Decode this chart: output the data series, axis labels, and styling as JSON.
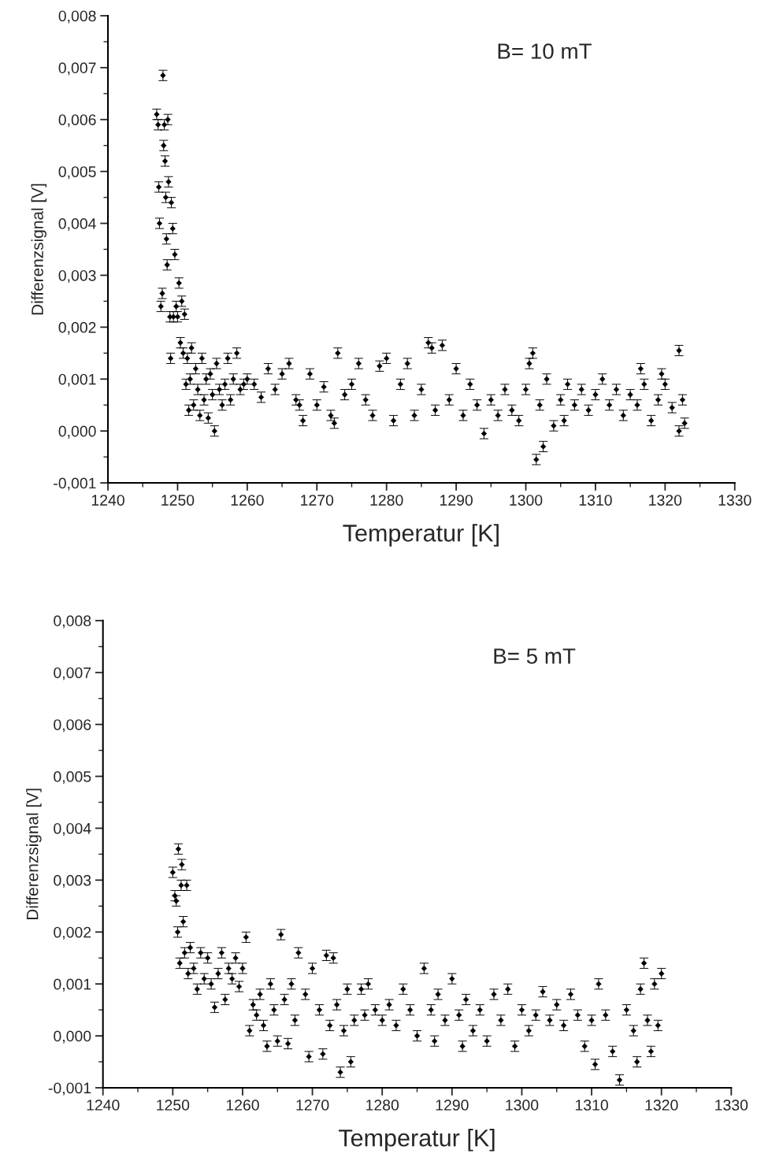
{
  "chart_data": [
    {
      "type": "scatter",
      "xlabel": "Temperatur [K]",
      "ylabel": "Differenzsignal [V]",
      "annotations": [
        "B= 10 mT"
      ],
      "marker": "diamond",
      "grid": false,
      "legend": false,
      "xlim": [
        1240,
        1330
      ],
      "xticks": [
        1240,
        1250,
        1260,
        1270,
        1280,
        1290,
        1300,
        1310,
        1320,
        1330
      ],
      "ylim": [
        -0.001,
        0.008
      ],
      "yticks": [
        {
          "value": -0.001,
          "label": "-0,001"
        },
        {
          "value": 0.0,
          "label": "0,000"
        },
        {
          "value": 0.001,
          "label": "0,001"
        },
        {
          "value": 0.002,
          "label": "0,002"
        },
        {
          "value": 0.003,
          "label": "0,003"
        },
        {
          "value": 0.004,
          "label": "0,004"
        },
        {
          "value": 0.005,
          "label": "0,005"
        },
        {
          "value": 0.006,
          "label": "0,006"
        },
        {
          "value": 0.007,
          "label": "0,007"
        },
        {
          "value": 0.008,
          "label": "0,008"
        }
      ],
      "series": [
        {
          "color": "#000000",
          "x": [
            1247.0,
            1247.2,
            1247.3,
            1247.4,
            1247.6,
            1247.8,
            1247.9,
            1248.0,
            1248.1,
            1248.2,
            1248.3,
            1248.4,
            1248.5,
            1248.6,
            1248.7,
            1248.9,
            1249.0,
            1249.1,
            1249.3,
            1249.4,
            1249.6,
            1249.8,
            1250.0,
            1250.2,
            1250.4,
            1250.6,
            1250.8,
            1251.0,
            1251.2,
            1251.4,
            1251.6,
            1251.8,
            1252.0,
            1252.3,
            1252.6,
            1252.9,
            1253.2,
            1253.5,
            1253.8,
            1254.1,
            1254.4,
            1254.7,
            1255.0,
            1255.3,
            1255.6,
            1256.0,
            1256.4,
            1256.8,
            1257.2,
            1257.6,
            1258.0,
            1258.5,
            1259.0,
            1259.5,
            1260.0,
            1261,
            1262,
            1263,
            1264,
            1265,
            1266,
            1267,
            1267.5,
            1268,
            1269,
            1270,
            1271,
            1272,
            1272.5,
            1273,
            1274,
            1275,
            1276,
            1277,
            1278,
            1279,
            1280,
            1281,
            1282,
            1283,
            1284,
            1285,
            1286,
            1286.5,
            1287,
            1288,
            1289,
            1290,
            1291,
            1292,
            1293,
            1294,
            1295,
            1296,
            1297,
            1298,
            1299,
            1300,
            1300.5,
            1301,
            1301.5,
            1302,
            1302.5,
            1303,
            1304,
            1305,
            1305.5,
            1306,
            1307,
            1308,
            1309,
            1310,
            1311,
            1312,
            1313,
            1314,
            1315,
            1316,
            1316.5,
            1317,
            1318,
            1319,
            1319.5,
            1320,
            1321,
            1322,
            1322,
            1322.5,
            1322.8
          ],
          "values": [
            0.0061,
            0.0059,
            0.0047,
            0.004,
            0.0024,
            0.00265,
            0.00685,
            0.0055,
            0.0059,
            0.0052,
            0.0045,
            0.0037,
            0.0032,
            0.006,
            0.0048,
            0.0022,
            0.0014,
            0.0044,
            0.0039,
            0.0022,
            0.0034,
            0.0024,
            0.0022,
            0.00285,
            0.0017,
            0.0025,
            0.0015,
            0.00225,
            0.0009,
            0.0014,
            0.0004,
            0.001,
            0.0016,
            0.0005,
            0.0012,
            0.0008,
            0.0003,
            0.0014,
            0.0006,
            0.001,
            0.00025,
            0.0011,
            0.0007,
            0.0,
            0.0013,
            0.0008,
            0.0005,
            0.0009,
            0.0014,
            0.0006,
            0.001,
            0.0015,
            0.0008,
            0.0009,
            0.001,
            0.0009,
            0.00065,
            0.0012,
            0.0008,
            0.0011,
            0.0013,
            0.0006,
            0.0005,
            0.0002,
            0.0011,
            0.0005,
            0.00085,
            0.0003,
            0.00015,
            0.0015,
            0.0007,
            0.0009,
            0.0013,
            0.0006,
            0.0003,
            0.00125,
            0.0014,
            0.0002,
            0.0009,
            0.0013,
            0.0003,
            0.0008,
            0.0017,
            0.0016,
            0.0004,
            0.00165,
            0.0006,
            0.0012,
            0.0003,
            0.0009,
            0.0005,
            -5e-05,
            0.0006,
            0.0003,
            0.0008,
            0.0004,
            0.0002,
            0.0008,
            0.0013,
            0.0015,
            -0.00055,
            0.0005,
            -0.0003,
            0.001,
            0.0001,
            0.0006,
            0.0002,
            0.0009,
            0.0005,
            0.0008,
            0.0004,
            0.0007,
            0.001,
            0.0005,
            0.0008,
            0.0003,
            0.0007,
            0.0005,
            0.0012,
            0.0009,
            0.0002,
            0.0006,
            0.0011,
            0.0009,
            0.00045,
            0.00155,
            0.0,
            0.0006,
            0.00015
          ],
          "errors": [
            0.0001,
            0.0001,
            0.0001,
            0.0001,
            0.0001,
            0.0001,
            0.0001,
            0.0001,
            0.0001,
            0.0001,
            0.0001,
            0.0001,
            0.0001,
            0.0001,
            0.0001,
            0.0001,
            0.0001,
            0.0001,
            0.0001,
            0.0001,
            0.0001,
            0.0001,
            0.0001,
            0.0001,
            0.0001,
            0.0001,
            0.0001,
            0.0001,
            0.0001,
            0.0001,
            0.0001,
            0.0001,
            0.0001,
            0.0001,
            0.0001,
            0.0001,
            0.0001,
            0.0001,
            0.0001,
            0.0001,
            0.0001,
            0.0001,
            0.0001,
            0.0001,
            0.0001,
            0.0001,
            0.0001,
            0.0001,
            0.0001,
            0.0001,
            0.0001,
            0.0001,
            0.0001,
            0.0001,
            0.0001,
            0.0001,
            0.0001,
            0.0001,
            0.0001,
            0.0001,
            0.0001,
            0.0001,
            0.0001,
            0.0001,
            0.0001,
            0.0001,
            0.0001,
            0.0001,
            0.0001,
            0.0001,
            0.0001,
            0.0001,
            0.0001,
            0.0001,
            0.0001,
            0.0001,
            0.0001,
            0.0001,
            0.0001,
            0.0001,
            0.0001,
            0.0001,
            0.0001,
            0.0001,
            0.0001,
            0.0001,
            0.0001,
            0.0001,
            0.0001,
            0.0001,
            0.0001,
            0.0001,
            0.0001,
            0.0001,
            0.0001,
            0.0001,
            0.0001,
            0.0001,
            0.0001,
            0.0001,
            0.0001,
            0.0001,
            0.0001,
            0.0001,
            0.0001,
            0.0001,
            0.0001,
            0.0001,
            0.0001,
            0.0001,
            0.0001,
            0.0001,
            0.0001,
            0.0001,
            0.0001,
            0.0001,
            0.0001,
            0.0001,
            0.0001,
            0.0001,
            0.0001,
            0.0001,
            0.0001,
            0.0001,
            0.0001,
            0.0001,
            0.0001,
            0.0001,
            0.0001
          ]
        }
      ]
    },
    {
      "type": "scatter",
      "xlabel": "Temperatur [K]",
      "ylabel": "Differenzsignal [V]",
      "annotations": [
        "B= 5 mT"
      ],
      "marker": "diamond",
      "grid": false,
      "legend": false,
      "xlim": [
        1240,
        1330
      ],
      "xticks": [
        1240,
        1250,
        1260,
        1270,
        1280,
        1290,
        1300,
        1310,
        1320,
        1330
      ],
      "ylim": [
        -0.001,
        0.008
      ],
      "yticks": [
        {
          "value": -0.001,
          "label": "-0,001"
        },
        {
          "value": 0.0,
          "label": "0,000"
        },
        {
          "value": 0.001,
          "label": "0,001"
        },
        {
          "value": 0.002,
          "label": "0,002"
        },
        {
          "value": 0.003,
          "label": "0,003"
        },
        {
          "value": 0.004,
          "label": "0,004"
        },
        {
          "value": 0.005,
          "label": "0,005"
        },
        {
          "value": 0.006,
          "label": "0,006"
        },
        {
          "value": 0.007,
          "label": "0,007"
        },
        {
          "value": 0.008,
          "label": "0,008"
        }
      ],
      "series": [
        {
          "color": "#000000",
          "x": [
            1250.0,
            1250.3,
            1250.5,
            1250.7,
            1250.8,
            1251.0,
            1251.2,
            1251.3,
            1251.5,
            1251.7,
            1252.0,
            1252.2,
            1252.5,
            1253,
            1253.5,
            1254,
            1254.5,
            1255,
            1255.5,
            1256,
            1256.5,
            1257,
            1257.5,
            1258,
            1258.5,
            1259,
            1259.5,
            1260,
            1260.5,
            1261,
            1261.5,
            1262,
            1262.5,
            1263,
            1263.5,
            1264,
            1264.5,
            1265,
            1265.5,
            1266,
            1266.5,
            1267,
            1267.5,
            1268,
            1269,
            1269.5,
            1270,
            1271,
            1271.5,
            1272,
            1272.5,
            1273,
            1273.5,
            1274,
            1274.5,
            1275,
            1275.5,
            1276,
            1277,
            1277.5,
            1278,
            1279,
            1280,
            1281,
            1282,
            1283,
            1284,
            1285,
            1286,
            1287,
            1287.5,
            1288,
            1289,
            1290,
            1291,
            1291.5,
            1292,
            1293,
            1294,
            1295,
            1296,
            1297,
            1298,
            1299,
            1300,
            1301,
            1302,
            1303,
            1304,
            1305,
            1306,
            1307,
            1308,
            1309,
            1310,
            1310.5,
            1311,
            1312,
            1313,
            1314,
            1315,
            1316,
            1316.5,
            1317,
            1317.5,
            1318,
            1318.5,
            1319,
            1319.5,
            1320
          ],
          "values": [
            0.00315,
            0.0027,
            0.0026,
            0.002,
            0.0036,
            0.0014,
            0.0029,
            0.0033,
            0.0022,
            0.0016,
            0.0029,
            0.0012,
            0.0017,
            0.0013,
            0.0009,
            0.0016,
            0.0011,
            0.0015,
            0.001,
            0.00055,
            0.0012,
            0.0016,
            0.0007,
            0.0013,
            0.0011,
            0.0015,
            0.00095,
            0.0013,
            0.0019,
            0.0001,
            0.0006,
            0.0004,
            0.0008,
            0.0002,
            -0.0002,
            0.001,
            0.0005,
            -0.0001,
            0.00195,
            0.0007,
            -0.00015,
            0.001,
            0.0003,
            0.0016,
            0.0008,
            -0.0004,
            0.0013,
            0.0005,
            -0.00035,
            0.00155,
            0.0002,
            0.0015,
            0.0006,
            -0.0007,
            0.0001,
            0.0009,
            -0.0005,
            0.0003,
            0.0009,
            0.0004,
            0.001,
            0.0005,
            0.0003,
            0.0006,
            0.0002,
            0.0009,
            0.0005,
            0.0,
            0.0013,
            0.0005,
            -0.0001,
            0.0008,
            0.0003,
            0.0011,
            0.0004,
            -0.0002,
            0.0007,
            0.0001,
            0.0005,
            -0.0001,
            0.0008,
            0.0003,
            0.0009,
            -0.0002,
            0.0005,
            0.0001,
            0.0004,
            0.00085,
            0.0003,
            0.0006,
            0.0002,
            0.0008,
            0.0004,
            -0.0002,
            0.0003,
            -0.00055,
            0.001,
            0.0004,
            -0.0003,
            -0.00085,
            0.0005,
            0.0001,
            -0.0005,
            0.0009,
            0.0014,
            0.0003,
            -0.0003,
            0.001,
            0.0002,
            0.0012
          ],
          "errors": [
            0.0001,
            0.0001,
            0.0001,
            0.0001,
            0.0001,
            0.0001,
            0.0001,
            0.0001,
            0.0001,
            0.0001,
            0.0001,
            0.0001,
            0.0001,
            0.0001,
            0.0001,
            0.0001,
            0.0001,
            0.0001,
            0.0001,
            0.0001,
            0.0001,
            0.0001,
            0.0001,
            0.0001,
            0.0001,
            0.0001,
            0.0001,
            0.0001,
            0.0001,
            0.0001,
            0.0001,
            0.0001,
            0.0001,
            0.0001,
            0.0001,
            0.0001,
            0.0001,
            0.0001,
            0.0001,
            0.0001,
            0.0001,
            0.0001,
            0.0001,
            0.0001,
            0.0001,
            0.0001,
            0.0001,
            0.0001,
            0.0001,
            0.0001,
            0.0001,
            0.0001,
            0.0001,
            0.0001,
            0.0001,
            0.0001,
            0.0001,
            0.0001,
            0.0001,
            0.0001,
            0.0001,
            0.0001,
            0.0001,
            0.0001,
            0.0001,
            0.0001,
            0.0001,
            0.0001,
            0.0001,
            0.0001,
            0.0001,
            0.0001,
            0.0001,
            0.0001,
            0.0001,
            0.0001,
            0.0001,
            0.0001,
            0.0001,
            0.0001,
            0.0001,
            0.0001,
            0.0001,
            0.0001,
            0.0001,
            0.0001,
            0.0001,
            0.0001,
            0.0001,
            0.0001,
            0.0001,
            0.0001,
            0.0001,
            0.0001,
            0.0001,
            0.0001,
            0.0001,
            0.0001,
            0.0001,
            0.0001,
            0.0001,
            0.0001,
            0.0001,
            0.0001,
            0.0001,
            0.0001,
            0.0001,
            0.0001,
            0.0001,
            0.0001
          ]
        }
      ]
    }
  ]
}
